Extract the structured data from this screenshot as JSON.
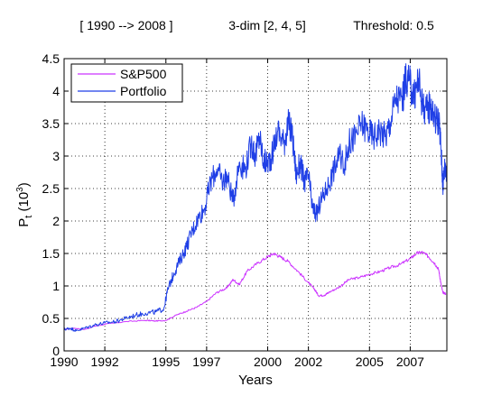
{
  "chart_data": {
    "type": "line",
    "header": {
      "period": "[ 1990 --> 2008 ]",
      "dims": "3-dim [2, 4, 5]",
      "threshold": "Threshold: 0.5"
    },
    "xlabel": "Years",
    "ylabel_main": "P",
    "ylabel_sub": "t",
    "ylabel_unit_open": " (10",
    "ylabel_unit_exp": "3",
    "ylabel_unit_close": ")",
    "xlim": [
      1990,
      2008.8
    ],
    "ylim": [
      0,
      4.5
    ],
    "xticks": [
      {
        "v": 1990,
        "label": "1990"
      },
      {
        "v": 1992,
        "label": "1992"
      },
      {
        "v": 1995,
        "label": "1995"
      },
      {
        "v": 1997,
        "label": "1997"
      },
      {
        "v": 2000,
        "label": "2000"
      },
      {
        "v": 2002,
        "label": "2002"
      },
      {
        "v": 2005,
        "label": "2005"
      },
      {
        "v": 2007,
        "label": "2007"
      }
    ],
    "yticks": [
      {
        "v": 0,
        "label": "0"
      },
      {
        "v": 0.5,
        "label": "0.5"
      },
      {
        "v": 1,
        "label": "1"
      },
      {
        "v": 1.5,
        "label": "1.5"
      },
      {
        "v": 2,
        "label": "2"
      },
      {
        "v": 2.5,
        "label": "2.5"
      },
      {
        "v": 3,
        "label": "3"
      },
      {
        "v": 3.5,
        "label": "3.5"
      },
      {
        "v": 4,
        "label": "4"
      },
      {
        "v": 4.5,
        "label": "4.5"
      }
    ],
    "grid": true,
    "legend_position": "top-left",
    "series": [
      {
        "name": "S&P500",
        "color": "#cc33ff",
        "points": [
          [
            1990.0,
            0.33
          ],
          [
            1990.5,
            0.35
          ],
          [
            1991.0,
            0.33
          ],
          [
            1991.5,
            0.38
          ],
          [
            1992.0,
            0.41
          ],
          [
            1993.0,
            0.45
          ],
          [
            1994.0,
            0.47
          ],
          [
            1994.5,
            0.46
          ],
          [
            1995.0,
            0.47
          ],
          [
            1995.5,
            0.55
          ],
          [
            1996.0,
            0.61
          ],
          [
            1996.5,
            0.67
          ],
          [
            1997.0,
            0.76
          ],
          [
            1997.5,
            0.9
          ],
          [
            1998.0,
            0.97
          ],
          [
            1998.3,
            1.1
          ],
          [
            1998.6,
            1.02
          ],
          [
            1999.0,
            1.23
          ],
          [
            1999.5,
            1.35
          ],
          [
            2000.0,
            1.45
          ],
          [
            2000.3,
            1.5
          ],
          [
            2000.6,
            1.45
          ],
          [
            2001.0,
            1.38
          ],
          [
            2001.5,
            1.22
          ],
          [
            2002.0,
            1.05
          ],
          [
            2002.3,
            0.95
          ],
          [
            2002.5,
            0.85
          ],
          [
            2002.8,
            0.86
          ],
          [
            2003.0,
            0.9
          ],
          [
            2003.5,
            0.98
          ],
          [
            2004.0,
            1.1
          ],
          [
            2004.5,
            1.13
          ],
          [
            2005.0,
            1.18
          ],
          [
            2005.5,
            1.22
          ],
          [
            2006.0,
            1.28
          ],
          [
            2006.5,
            1.33
          ],
          [
            2007.0,
            1.42
          ],
          [
            2007.3,
            1.5
          ],
          [
            2007.6,
            1.52
          ],
          [
            2007.9,
            1.45
          ],
          [
            2008.2,
            1.35
          ],
          [
            2008.4,
            1.25
          ],
          [
            2008.5,
            1.05
          ],
          [
            2008.6,
            0.9
          ],
          [
            2008.75,
            0.88
          ]
        ]
      },
      {
        "name": "Portfolio",
        "color": "#1f3fe6",
        "points": [
          [
            1990.0,
            0.33
          ],
          [
            1990.3,
            0.35
          ],
          [
            1990.6,
            0.31
          ],
          [
            1991.0,
            0.35
          ],
          [
            1991.5,
            0.4
          ],
          [
            1992.0,
            0.43
          ],
          [
            1992.5,
            0.45
          ],
          [
            1993.0,
            0.5
          ],
          [
            1993.5,
            0.55
          ],
          [
            1994.0,
            0.58
          ],
          [
            1994.5,
            0.6
          ],
          [
            1994.9,
            0.65
          ],
          [
            1995.1,
            0.95
          ],
          [
            1995.4,
            1.2
          ],
          [
            1995.7,
            1.4
          ],
          [
            1996.0,
            1.6
          ],
          [
            1996.3,
            1.85
          ],
          [
            1996.6,
            2.05
          ],
          [
            1996.9,
            2.2
          ],
          [
            1997.2,
            2.6
          ],
          [
            1997.5,
            2.8
          ],
          [
            1997.8,
            2.6
          ],
          [
            1998.0,
            2.7
          ],
          [
            1998.3,
            2.3
          ],
          [
            1998.6,
            2.9
          ],
          [
            1998.9,
            2.8
          ],
          [
            1999.2,
            3.2
          ],
          [
            1999.4,
            3.0
          ],
          [
            1999.6,
            3.3
          ],
          [
            1999.8,
            2.9
          ],
          [
            2000.0,
            2.9
          ],
          [
            2000.2,
            3.0
          ],
          [
            2000.5,
            3.4
          ],
          [
            2000.8,
            3.2
          ],
          [
            2001.0,
            3.5
          ],
          [
            2001.2,
            3.35
          ],
          [
            2001.4,
            2.7
          ],
          [
            2001.6,
            2.9
          ],
          [
            2001.8,
            2.6
          ],
          [
            2002.0,
            2.7
          ],
          [
            2002.2,
            2.2
          ],
          [
            2002.4,
            2.1
          ],
          [
            2002.6,
            2.3
          ],
          [
            2002.9,
            2.5
          ],
          [
            2003.2,
            2.75
          ],
          [
            2003.5,
            3.0
          ],
          [
            2003.8,
            2.9
          ],
          [
            2004.0,
            3.2
          ],
          [
            2004.3,
            3.3
          ],
          [
            2004.6,
            3.5
          ],
          [
            2004.9,
            3.4
          ],
          [
            2005.2,
            3.3
          ],
          [
            2005.5,
            3.4
          ],
          [
            2005.8,
            3.3
          ],
          [
            2006.0,
            3.5
          ],
          [
            2006.3,
            3.9
          ],
          [
            2006.6,
            3.85
          ],
          [
            2006.8,
            4.2
          ],
          [
            2007.0,
            4.1
          ],
          [
            2007.2,
            3.9
          ],
          [
            2007.4,
            4.2
          ],
          [
            2007.6,
            3.8
          ],
          [
            2007.8,
            3.7
          ],
          [
            2008.0,
            3.8
          ],
          [
            2008.2,
            3.6
          ],
          [
            2008.4,
            3.55
          ],
          [
            2008.5,
            3.2
          ],
          [
            2008.6,
            2.55
          ],
          [
            2008.7,
            2.85
          ],
          [
            2008.78,
            2.8
          ]
        ]
      }
    ]
  }
}
